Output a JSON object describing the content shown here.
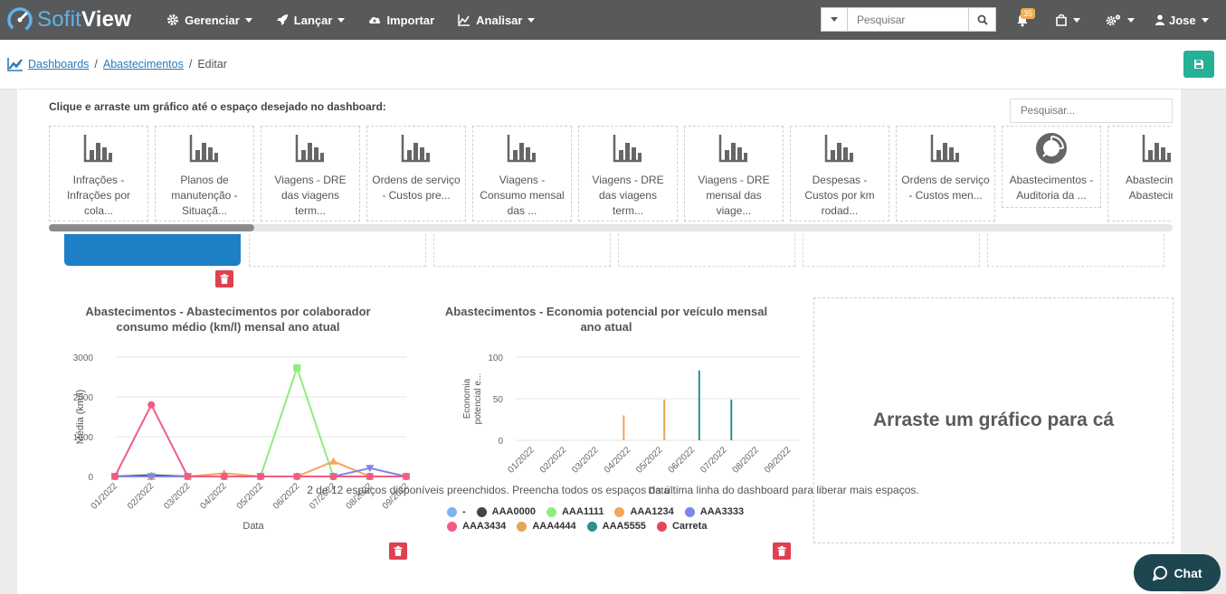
{
  "brand": {
    "logo_light": "Sofit",
    "logo_bold": "View"
  },
  "nav": {
    "items": [
      {
        "label": "Gerenciar",
        "icon": "gear-icon",
        "caret": true
      },
      {
        "label": "Lançar",
        "icon": "rocket-icon",
        "caret": true
      },
      {
        "label": "Importar",
        "icon": "cloud-upload-icon",
        "caret": false
      },
      {
        "label": "Analisar",
        "icon": "area-chart-icon",
        "caret": true
      }
    ],
    "search_placeholder": "Pesquisar",
    "notifications_count": "35",
    "user": "Jose"
  },
  "breadcrumb": {
    "items": [
      "Dashboards",
      "Abastecimentos"
    ],
    "current": "Editar"
  },
  "library": {
    "instruction": "Clique e arraste um gráfico até o espaço desejado no dashboard:",
    "search_placeholder": "Pesquisar...",
    "cards": [
      {
        "label": "Infrações - Infrações por cola...",
        "icon": "bar-chart-icon"
      },
      {
        "label": "Planos de manutenção - Situaçã...",
        "icon": "bar-chart-icon"
      },
      {
        "label": "Viagens - DRE das viagens term...",
        "icon": "bar-chart-icon"
      },
      {
        "label": "Ordens de serviço - Custos pre...",
        "icon": "bar-chart-icon"
      },
      {
        "label": "Viagens - Consumo mensal das ...",
        "icon": "bar-chart-icon"
      },
      {
        "label": "Viagens - DRE das viagens term...",
        "icon": "bar-chart-icon"
      },
      {
        "label": "Viagens - DRE mensal das viage...",
        "icon": "bar-chart-icon"
      },
      {
        "label": "Despesas - Custos por km rodad...",
        "icon": "bar-chart-icon"
      },
      {
        "label": "Ordens de serviço - Custos men...",
        "icon": "bar-chart-icon"
      },
      {
        "label": "Abastecimentos - Auditoria da ...",
        "icon": "pie-chart-icon"
      },
      {
        "label": "Abastecime - Abastecime",
        "icon": "bar-chart-icon"
      }
    ]
  },
  "chart_data": [
    {
      "type": "line",
      "title": "Abastecimentos - Abastecimentos por colaborador consumo médio (km/l) mensal ano atual",
      "xlabel": "Data",
      "ylabel": "Média (km/l)",
      "categories": [
        "01/2022",
        "02/2022",
        "03/2022",
        "04/2022",
        "05/2022",
        "06/2022",
        "07/2022",
        "08/2022",
        "09/2022"
      ],
      "yticks": [
        0,
        1000,
        2000,
        3000
      ],
      "ylim": [
        0,
        3000
      ],
      "series": [
        {
          "name": "",
          "color": "#7cb5ec",
          "values": [
            0,
            30,
            0,
            0,
            0,
            0,
            0,
            0,
            0
          ]
        },
        {
          "name": "",
          "color": "#434348",
          "values": [
            0,
            30,
            0,
            0,
            0,
            0,
            0,
            0,
            0
          ]
        },
        {
          "name": "",
          "color": "#90ed7d",
          "values": [
            0,
            0,
            0,
            0,
            0,
            2730,
            0,
            0,
            0
          ]
        },
        {
          "name": "",
          "color": "#f7a35c",
          "values": [
            0,
            0,
            0,
            80,
            0,
            0,
            380,
            0,
            0
          ]
        },
        {
          "name": "",
          "color": "#8085e9",
          "values": [
            0,
            0,
            0,
            0,
            0,
            0,
            0,
            210,
            0
          ]
        },
        {
          "name": "",
          "color": "#f15c80",
          "values": [
            0,
            1800,
            0,
            0,
            0,
            0,
            0,
            0,
            0
          ]
        }
      ]
    },
    {
      "type": "bar",
      "title": "Abastecimentos - Economia potencial por veículo mensal ano atual",
      "xlabel": "Data",
      "ylabel": "Economia potencial e...",
      "categories": [
        "01/2022",
        "02/2022",
        "03/2022",
        "04/2022",
        "05/2022",
        "06/2022",
        "07/2022",
        "08/2022",
        "09/2022"
      ],
      "yticks": [
        0,
        50,
        100
      ],
      "ylim": [
        0,
        100
      ],
      "series": [
        {
          "name": "-",
          "color": "#7cb5ec",
          "values": [
            0,
            0,
            0,
            0,
            0,
            0,
            0,
            0,
            0
          ]
        },
        {
          "name": "AAA0000",
          "color": "#434348",
          "values": [
            0,
            0,
            0,
            0,
            0,
            0,
            0,
            0,
            0
          ]
        },
        {
          "name": "AAA1111",
          "color": "#90ed7d",
          "values": [
            0,
            0,
            0,
            0,
            0,
            0,
            0,
            0,
            0
          ]
        },
        {
          "name": "AAA1234",
          "color": "#f7a35c",
          "values": [
            0,
            0,
            0,
            30,
            0,
            0,
            0,
            0,
            0
          ]
        },
        {
          "name": "AAA3333",
          "color": "#8085e9",
          "values": [
            0,
            0,
            0,
            0,
            0,
            0,
            0,
            0,
            0
          ]
        },
        {
          "name": "AAA3434",
          "color": "#f15c80",
          "values": [
            0,
            0,
            0,
            0,
            0,
            0,
            0,
            0,
            0
          ]
        },
        {
          "name": "AAA4444",
          "color": "#e4a655",
          "values": [
            0,
            0,
            0,
            0,
            49,
            0,
            0,
            0,
            0
          ]
        },
        {
          "name": "AAA5555",
          "color": "#2b908f",
          "values": [
            0,
            0,
            0,
            0,
            0,
            84,
            49,
            0,
            0
          ]
        },
        {
          "name": "Carreta",
          "color": "#e4465a",
          "values": [
            0,
            0,
            0,
            0,
            0,
            0,
            0,
            0,
            0
          ]
        }
      ]
    }
  ],
  "dropzone": {
    "text": "Arraste um gráfico para cá"
  },
  "footer": {
    "note": "2 de 12 espaços disponíveis preenchidos. Preencha todos os espaços da última linha do dashboard para liberar mais espaços."
  },
  "chat": {
    "label": "Chat"
  },
  "colors": {
    "navbar": "#58595b",
    "accent": "#26b196",
    "link": "#2a7ab8",
    "danger": "#e0404f",
    "chat": "#1d4651",
    "blue_widget": "#1d7fc5"
  }
}
